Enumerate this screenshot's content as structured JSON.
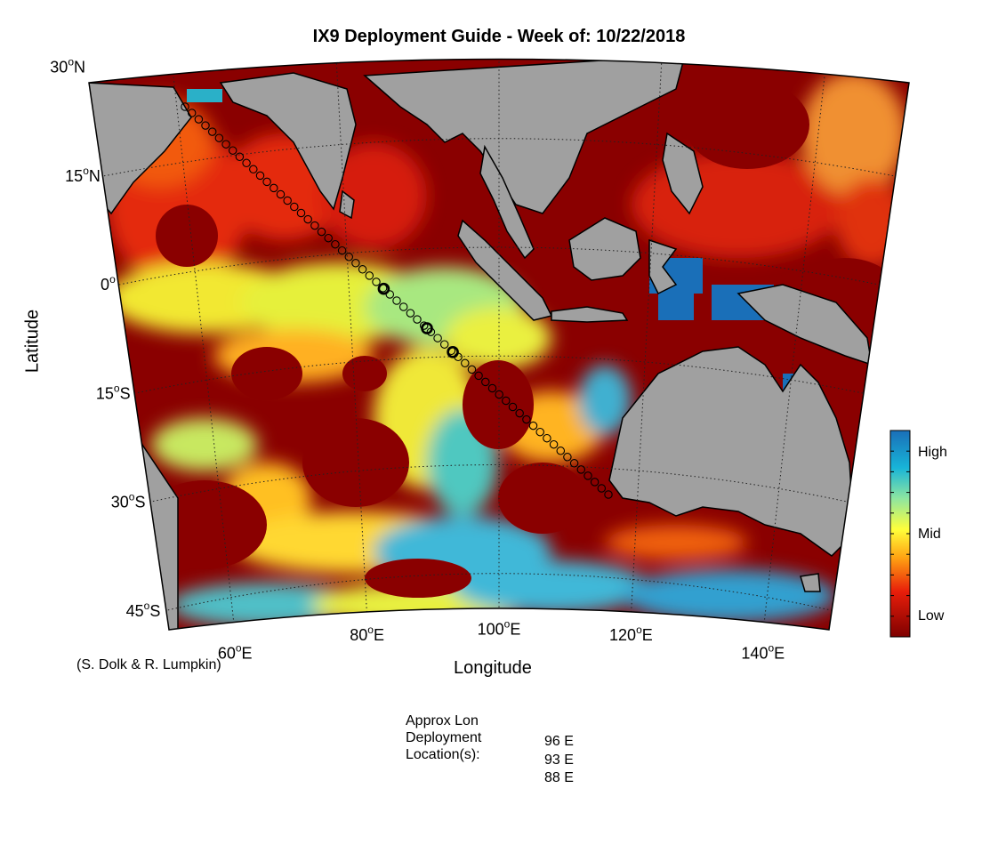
{
  "title": "IX9 Deployment Guide - Week of: 10/22/2018",
  "xlabel": "Longitude",
  "ylabel": "Latitude",
  "credit": "(S. Dolk & R. Lumpkin)",
  "lat_ticks": [
    {
      "deg": "30",
      "hemi": "N",
      "value": 30
    },
    {
      "deg": "15",
      "hemi": "N",
      "value": 15
    },
    {
      "deg": "0",
      "hemi": "",
      "value": 0
    },
    {
      "deg": "15",
      "hemi": "S",
      "value": -15
    },
    {
      "deg": "30",
      "hemi": "S",
      "value": -30
    },
    {
      "deg": "45",
      "hemi": "S",
      "value": -45
    }
  ],
  "lon_ticks": [
    {
      "deg": "60",
      "hemi": "E",
      "value": 60
    },
    {
      "deg": "80",
      "hemi": "E",
      "value": 80
    },
    {
      "deg": "100",
      "hemi": "E",
      "value": 100
    },
    {
      "deg": "120",
      "hemi": "E",
      "value": 120
    },
    {
      "deg": "140",
      "hemi": "E",
      "value": 140
    }
  ],
  "map_extent": {
    "lon_min": 50,
    "lon_max": 150,
    "lat_min": -50,
    "lat_max": 30
  },
  "colorbar": {
    "labels": [
      "High",
      "Mid",
      "Low"
    ],
    "colors": [
      "#1a6fb8",
      "#18b4d8",
      "#8ee6a0",
      "#ffff3a",
      "#ffa012",
      "#e81e0a",
      "#7e0000"
    ]
  },
  "colors": {
    "land": "#a0a0a0",
    "ocean_low": "#8a0000",
    "track_point": "#e8c050"
  },
  "ship_track": {
    "start": {
      "lon": 65,
      "lat": 25
    },
    "end": {
      "lon": 114,
      "lat": -31
    }
  },
  "deployments": [
    {
      "lon": 88,
      "label": "88 E"
    },
    {
      "lon": 93,
      "label": "93 E"
    },
    {
      "lon": 96,
      "label": "96 E"
    }
  ],
  "info": {
    "line1": "Approx Lon",
    "line2": "Deployment",
    "line3": "Location(s):",
    "locations": [
      "96 E",
      "93 E",
      "88 E"
    ]
  }
}
